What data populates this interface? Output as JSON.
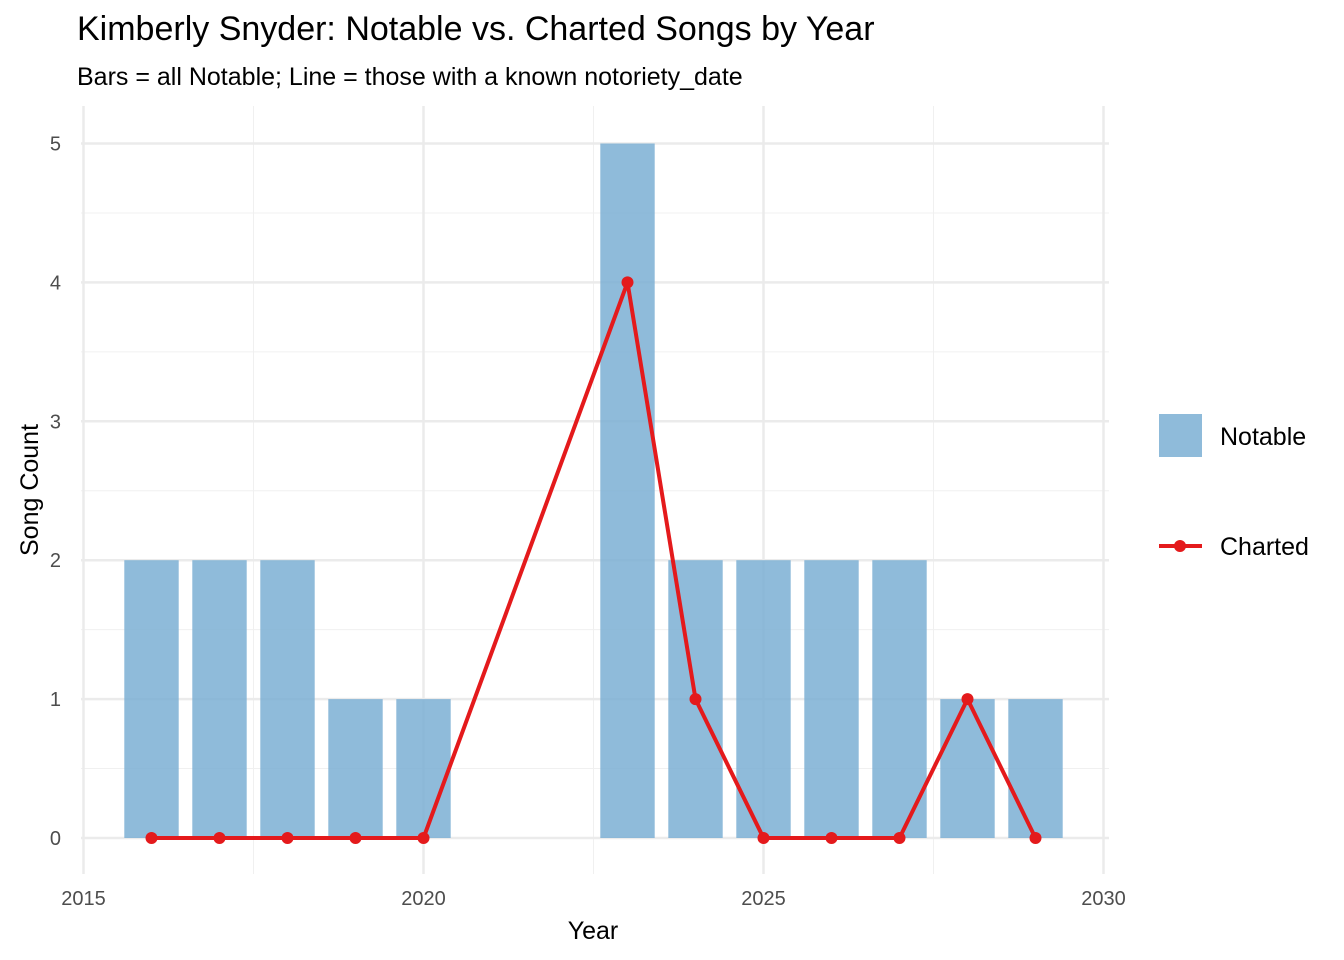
{
  "chart_data": {
    "type": "bar",
    "title": "Kimberly Snyder: Notable vs. Charted Songs by Year",
    "subtitle": "Bars = all Notable; Line = those with a known notoriety_date",
    "xlabel": "Year",
    "ylabel": "Song Count",
    "xlim": [
      2015,
      2030
    ],
    "ylim": [
      0,
      5
    ],
    "x_ticks": [
      "2015",
      "2020",
      "2025",
      "2030"
    ],
    "y_ticks": [
      "0",
      "1",
      "2",
      "3",
      "4",
      "5"
    ],
    "grid": true,
    "legend_position": "right",
    "series": [
      {
        "name": "Notable",
        "type": "bar",
        "color": "#7BAFD4",
        "x": [
          2016,
          2017,
          2018,
          2019,
          2020,
          2023,
          2024,
          2025,
          2026,
          2027,
          2028,
          2029
        ],
        "values": [
          2,
          2,
          2,
          1,
          1,
          5,
          2,
          2,
          2,
          2,
          1,
          1
        ]
      },
      {
        "name": "Charted",
        "type": "line",
        "color": "#E41A1C",
        "x": [
          2016,
          2017,
          2018,
          2019,
          2020,
          2023,
          2024,
          2025,
          2026,
          2027,
          2028,
          2029
        ],
        "values": [
          0,
          0,
          0,
          0,
          0,
          4,
          1,
          0,
          0,
          0,
          1,
          0
        ]
      }
    ]
  }
}
